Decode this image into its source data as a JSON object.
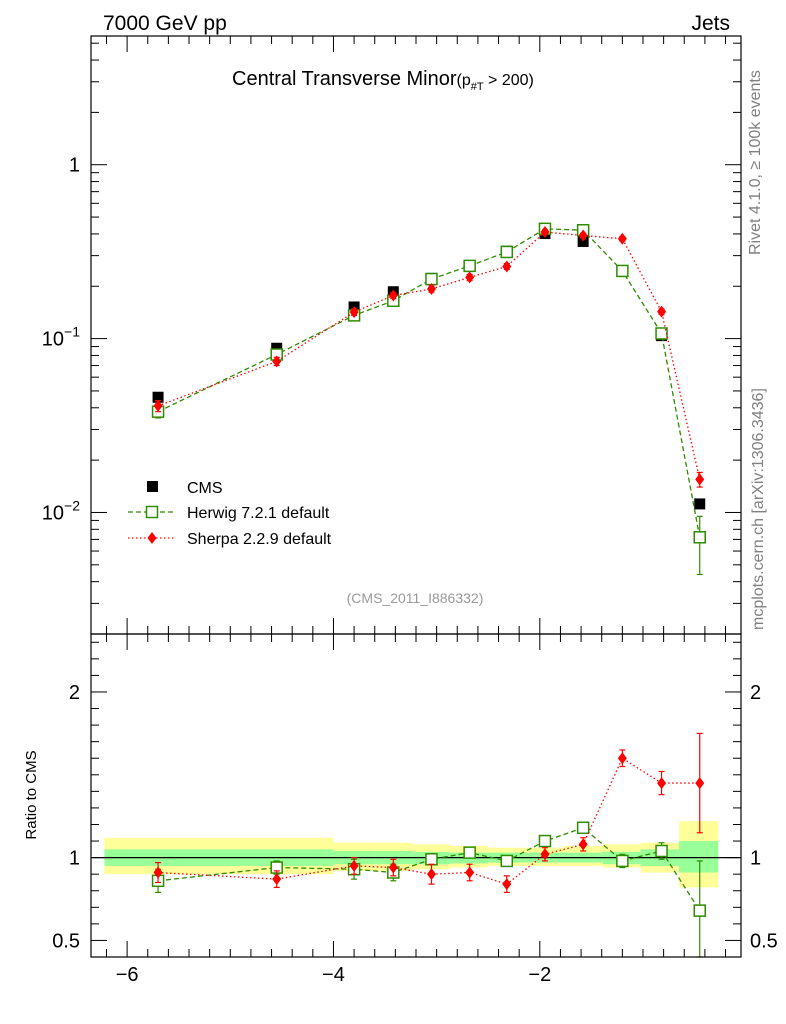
{
  "header": {
    "energy_label": "7000 GeV pp",
    "category_label": "Jets",
    "reference_label": "(CMS_2011_I886332)"
  },
  "sidebar": {
    "rivet_label": "Rivet 4.1.0, ≥ 100k events",
    "site_label": "mcplots.cern.ch [arXiv:1306.3436]"
  },
  "chart_data": [
    {
      "type": "scatter",
      "panel": "main",
      "title": "Central Transverse Minor",
      "title_cut": "(p",
      "title_cut_sub": "#T",
      "title_cut_tail": " > 200)",
      "yscale": "log",
      "xlim": [
        -6.35,
        -0.05
      ],
      "ylim": [
        0.002,
        5.5
      ],
      "xlabel": "",
      "ylabel": "",
      "yticks": [
        {
          "value": 1,
          "base": "1",
          "exp": ""
        },
        {
          "value": 0.1,
          "base": "10",
          "exp": "−1"
        },
        {
          "value": 0.01,
          "base": "10",
          "exp": "−2"
        }
      ],
      "legend_position": "left-lower",
      "x": [
        -5.7,
        -4.55,
        -3.8,
        -3.42,
        -3.05,
        -2.68,
        -2.32,
        -1.95,
        -1.58,
        -1.2,
        -0.82,
        -0.45
      ],
      "series": [
        {
          "name": "CMS",
          "color": "#000000",
          "marker": "filled-square",
          "values": [
            0.046,
            0.088,
            0.152,
            0.186,
            0.222,
            0.262,
            0.318,
            0.402,
            0.362,
            0.245,
            0.104,
            0.0112
          ]
        },
        {
          "name": "Herwig 7.2.1 default",
          "color": "#2e8b00",
          "marker": "open-square",
          "line": "dashed",
          "values": [
            0.038,
            0.081,
            0.136,
            0.165,
            0.22,
            0.262,
            0.315,
            0.428,
            0.42,
            0.245,
            0.107,
            0.0072
          ],
          "err_low": [
            0.035,
            0.077,
            0.13,
            0.158,
            0.212,
            0.252,
            0.305,
            0.415,
            0.405,
            0.238,
            0.103,
            0.0044
          ],
          "err_high": [
            0.041,
            0.085,
            0.142,
            0.172,
            0.228,
            0.272,
            0.325,
            0.441,
            0.435,
            0.252,
            0.111,
            0.0095
          ]
        },
        {
          "name": "Sherpa 2.2.9 default",
          "color": "#ff0000",
          "marker": "filled-diamond",
          "line": "dotted",
          "values": [
            0.041,
            0.074,
            0.142,
            0.177,
            0.193,
            0.225,
            0.26,
            0.41,
            0.392,
            0.375,
            0.143,
            0.0155
          ],
          "err_low": [
            0.038,
            0.07,
            0.136,
            0.17,
            0.185,
            0.216,
            0.25,
            0.398,
            0.38,
            0.364,
            0.138,
            0.014
          ],
          "err_high": [
            0.044,
            0.078,
            0.148,
            0.184,
            0.201,
            0.234,
            0.27,
            0.422,
            0.404,
            0.386,
            0.148,
            0.017
          ]
        }
      ]
    },
    {
      "type": "scatter",
      "panel": "ratio",
      "xlim": [
        -6.35,
        -0.05
      ],
      "ylim": [
        0.4,
        2.35
      ],
      "xlabel": "",
      "ylabel": "Ratio to CMS",
      "yticks": [
        2,
        1,
        0.5
      ],
      "ytick_labels": [
        "2",
        "1",
        "0.5"
      ],
      "xticks": [
        -6,
        -4,
        -2
      ],
      "xtick_labels": [
        "−6",
        "−4",
        "−2"
      ],
      "bin_edges": [
        -6.22,
        -5.1,
        -4.0,
        -3.6,
        -3.24,
        -2.87,
        -2.5,
        -2.14,
        -1.77,
        -1.39,
        -1.02,
        -0.65,
        -0.27
      ],
      "band_stat_low": [
        0.95,
        0.95,
        0.96,
        0.96,
        0.96,
        0.965,
        0.97,
        0.97,
        0.97,
        0.96,
        0.95,
        0.91
      ],
      "band_stat_high": [
        1.05,
        1.05,
        1.04,
        1.04,
        1.035,
        1.03,
        1.03,
        1.03,
        1.03,
        1.035,
        1.05,
        1.1
      ],
      "band_tot_low": [
        0.9,
        0.9,
        0.92,
        0.92,
        0.93,
        0.94,
        0.95,
        0.95,
        0.95,
        0.94,
        0.91,
        0.82
      ],
      "band_tot_high": [
        1.12,
        1.12,
        1.09,
        1.09,
        1.08,
        1.07,
        1.06,
        1.06,
        1.07,
        1.08,
        1.09,
        1.22
      ],
      "band_colors": {
        "total": "#ffff99",
        "stat": "#99ff99"
      },
      "x": [
        -5.7,
        -4.55,
        -3.8,
        -3.42,
        -3.05,
        -2.68,
        -2.32,
        -1.95,
        -1.58,
        -1.2,
        -0.82,
        -0.45
      ],
      "series": [
        {
          "name": "Herwig 7.2.1 default",
          "color": "#2e8b00",
          "marker": "open-square",
          "line": "dashed",
          "values": [
            0.86,
            0.94,
            0.93,
            0.91,
            0.99,
            1.03,
            0.98,
            1.1,
            1.18,
            0.98,
            1.04,
            0.68
          ],
          "err_low": [
            0.79,
            0.9,
            0.87,
            0.86,
            0.96,
            1.0,
            0.95,
            1.07,
            1.15,
            0.94,
            0.99,
            0.38
          ],
          "err_high": [
            0.93,
            0.98,
            0.99,
            0.96,
            1.02,
            1.06,
            1.01,
            1.13,
            1.21,
            1.02,
            1.09,
            0.98
          ]
        },
        {
          "name": "Sherpa 2.2.9 default",
          "color": "#ff0000",
          "marker": "filled-diamond",
          "line": "dotted",
          "values": [
            0.91,
            0.87,
            0.95,
            0.94,
            0.9,
            0.91,
            0.84,
            1.02,
            1.08,
            1.6,
            1.45,
            1.45
          ],
          "err_low": [
            0.85,
            0.82,
            0.9,
            0.89,
            0.84,
            0.86,
            0.79,
            0.98,
            1.04,
            1.55,
            1.38,
            1.15
          ],
          "err_high": [
            0.97,
            0.92,
            1.0,
            0.99,
            0.96,
            0.96,
            0.89,
            1.06,
            1.12,
            1.65,
            1.52,
            1.75
          ]
        }
      ]
    }
  ]
}
